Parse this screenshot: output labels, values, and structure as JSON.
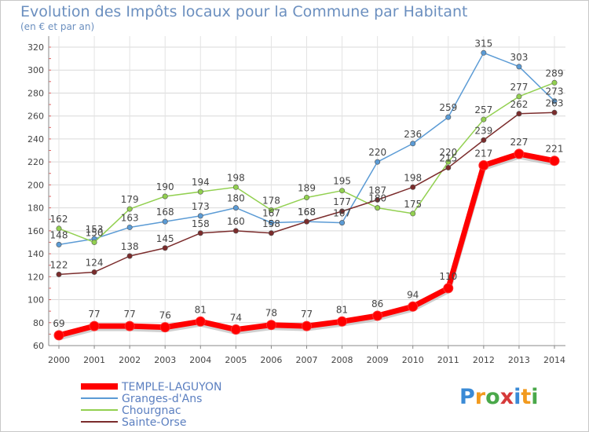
{
  "title": "Evolution des Impôts locaux pour la Commune par Habitant",
  "subtitle": "(en € et par an)",
  "logo_text": "Proxiti",
  "chart_data": {
    "type": "line",
    "title": "Evolution des Impôts locaux pour la Commune par Habitant",
    "subtitle": "(en € et par an)",
    "x": [
      "2000",
      "2001",
      "2002",
      "2003",
      "2004",
      "2005",
      "2006",
      "2007",
      "2008",
      "2009",
      "2010",
      "2011",
      "2012",
      "2013",
      "2014"
    ],
    "ylim": [
      60,
      320
    ],
    "yticks": [
      60,
      80,
      100,
      120,
      140,
      160,
      180,
      200,
      220,
      240,
      260,
      280,
      300,
      320
    ],
    "grid": true,
    "legend_position": "bottom-left",
    "series": [
      {
        "name": "TEMPLE-LAGUYON",
        "color": "#ff0000",
        "values": [
          69,
          77,
          77,
          76,
          81,
          74,
          78,
          77,
          81,
          86,
          94,
          110,
          217,
          227,
          221
        ]
      },
      {
        "name": "Granges-d'Ans",
        "color": "#5b9bd5",
        "values": [
          148,
          153,
          163,
          168,
          173,
          180,
          167,
          168,
          167,
          220,
          236,
          259,
          315,
          303,
          273
        ]
      },
      {
        "name": "Chourgnac",
        "color": "#92d050",
        "values": [
          162,
          150,
          179,
          190,
          194,
          198,
          178,
          189,
          195,
          180,
          175,
          220,
          257,
          277,
          289
        ]
      },
      {
        "name": "Sainte-Orse",
        "color": "#7b2c2c",
        "values": [
          122,
          124,
          138,
          145,
          158,
          160,
          158,
          168,
          177,
          187,
          198,
          215,
          239,
          262,
          263
        ]
      }
    ]
  }
}
